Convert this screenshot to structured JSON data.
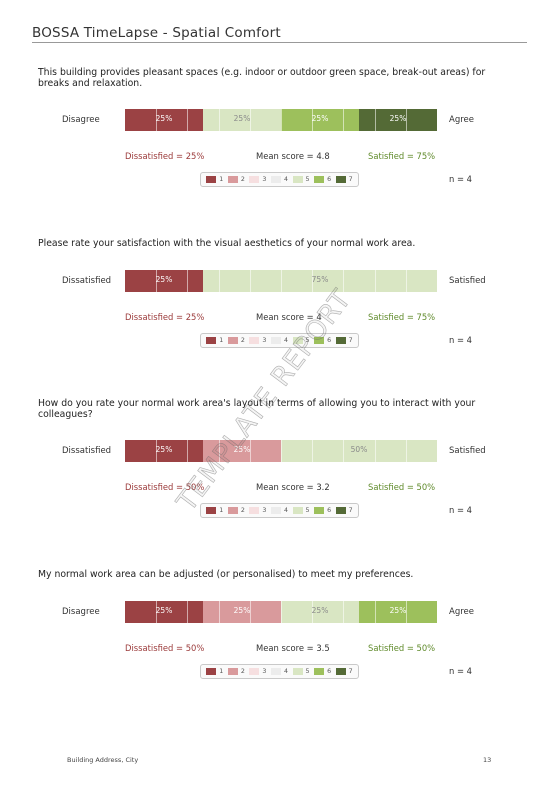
{
  "header": {
    "title": "BOSSA TimeLapse - Spatial Comfort"
  },
  "palette": {
    "1": "#9b4244",
    "2": "#d99a9c",
    "3": "#f6dfe0",
    "4": "#ececec",
    "5": "#d9e6c3",
    "6": "#9dc05c",
    "7": "#546a36"
  },
  "legend_items": [
    "1",
    "2",
    "3",
    "4",
    "5",
    "6",
    "7"
  ],
  "questions": [
    {
      "text": "This building provides pleasant spaces (e.g. indoor or outdoor green space, break-out areas) for breaks and relaxation.",
      "left_label": "Disagree",
      "right_label": "Agree",
      "segments": [
        {
          "level": "1",
          "pct": 25,
          "label": "25%"
        },
        {
          "level": "5",
          "pct": 25,
          "label": "25%"
        },
        {
          "level": "6",
          "pct": 25,
          "label": "25%"
        },
        {
          "level": "7",
          "pct": 25,
          "label": "25%"
        }
      ],
      "dissatisfied": "Dissatisfied = 25%",
      "mean": "Mean score = 4.8",
      "satisfied": "Satisfied = 75%",
      "n": "n = 4"
    },
    {
      "text": "Please rate your satisfaction with the visual aesthetics of your normal work area.",
      "left_label": "Dissatisfied",
      "right_label": "Satisfied",
      "segments": [
        {
          "level": "1",
          "pct": 25,
          "label": "25%"
        },
        {
          "level": "5",
          "pct": 75,
          "label": "75%"
        }
      ],
      "dissatisfied": "Dissatisfied = 25%",
      "mean": "Mean score = 4",
      "satisfied": "Satisfied = 75%",
      "n": "n = 4"
    },
    {
      "text": "How do you rate your normal work area's layout in terms of allowing you to interact with your colleagues?",
      "left_label": "Dissatisfied",
      "right_label": "Satisfied",
      "segments": [
        {
          "level": "1",
          "pct": 25,
          "label": "25%"
        },
        {
          "level": "2",
          "pct": 25,
          "label": "25%"
        },
        {
          "level": "5",
          "pct": 50,
          "label": "50%"
        }
      ],
      "dissatisfied": "Dissatisfied = 50%",
      "mean": "Mean score = 3.2",
      "satisfied": "Satisfied = 50%",
      "n": "n = 4"
    },
    {
      "text": "My normal work area can be adjusted (or personalised) to meet my preferences.",
      "left_label": "Disagree",
      "right_label": "Agree",
      "segments": [
        {
          "level": "1",
          "pct": 25,
          "label": "25%"
        },
        {
          "level": "2",
          "pct": 25,
          "label": "25%"
        },
        {
          "level": "5",
          "pct": 25,
          "label": "25%"
        },
        {
          "level": "6",
          "pct": 25,
          "label": "25%"
        }
      ],
      "dissatisfied": "Dissatisfied = 50%",
      "mean": "Mean score = 3.5",
      "satisfied": "Satisfied = 50%",
      "n": "n = 4"
    }
  ],
  "watermark": "TEMPLATE REPORT",
  "footer": {
    "address": "Building Address, City",
    "page": "13"
  }
}
